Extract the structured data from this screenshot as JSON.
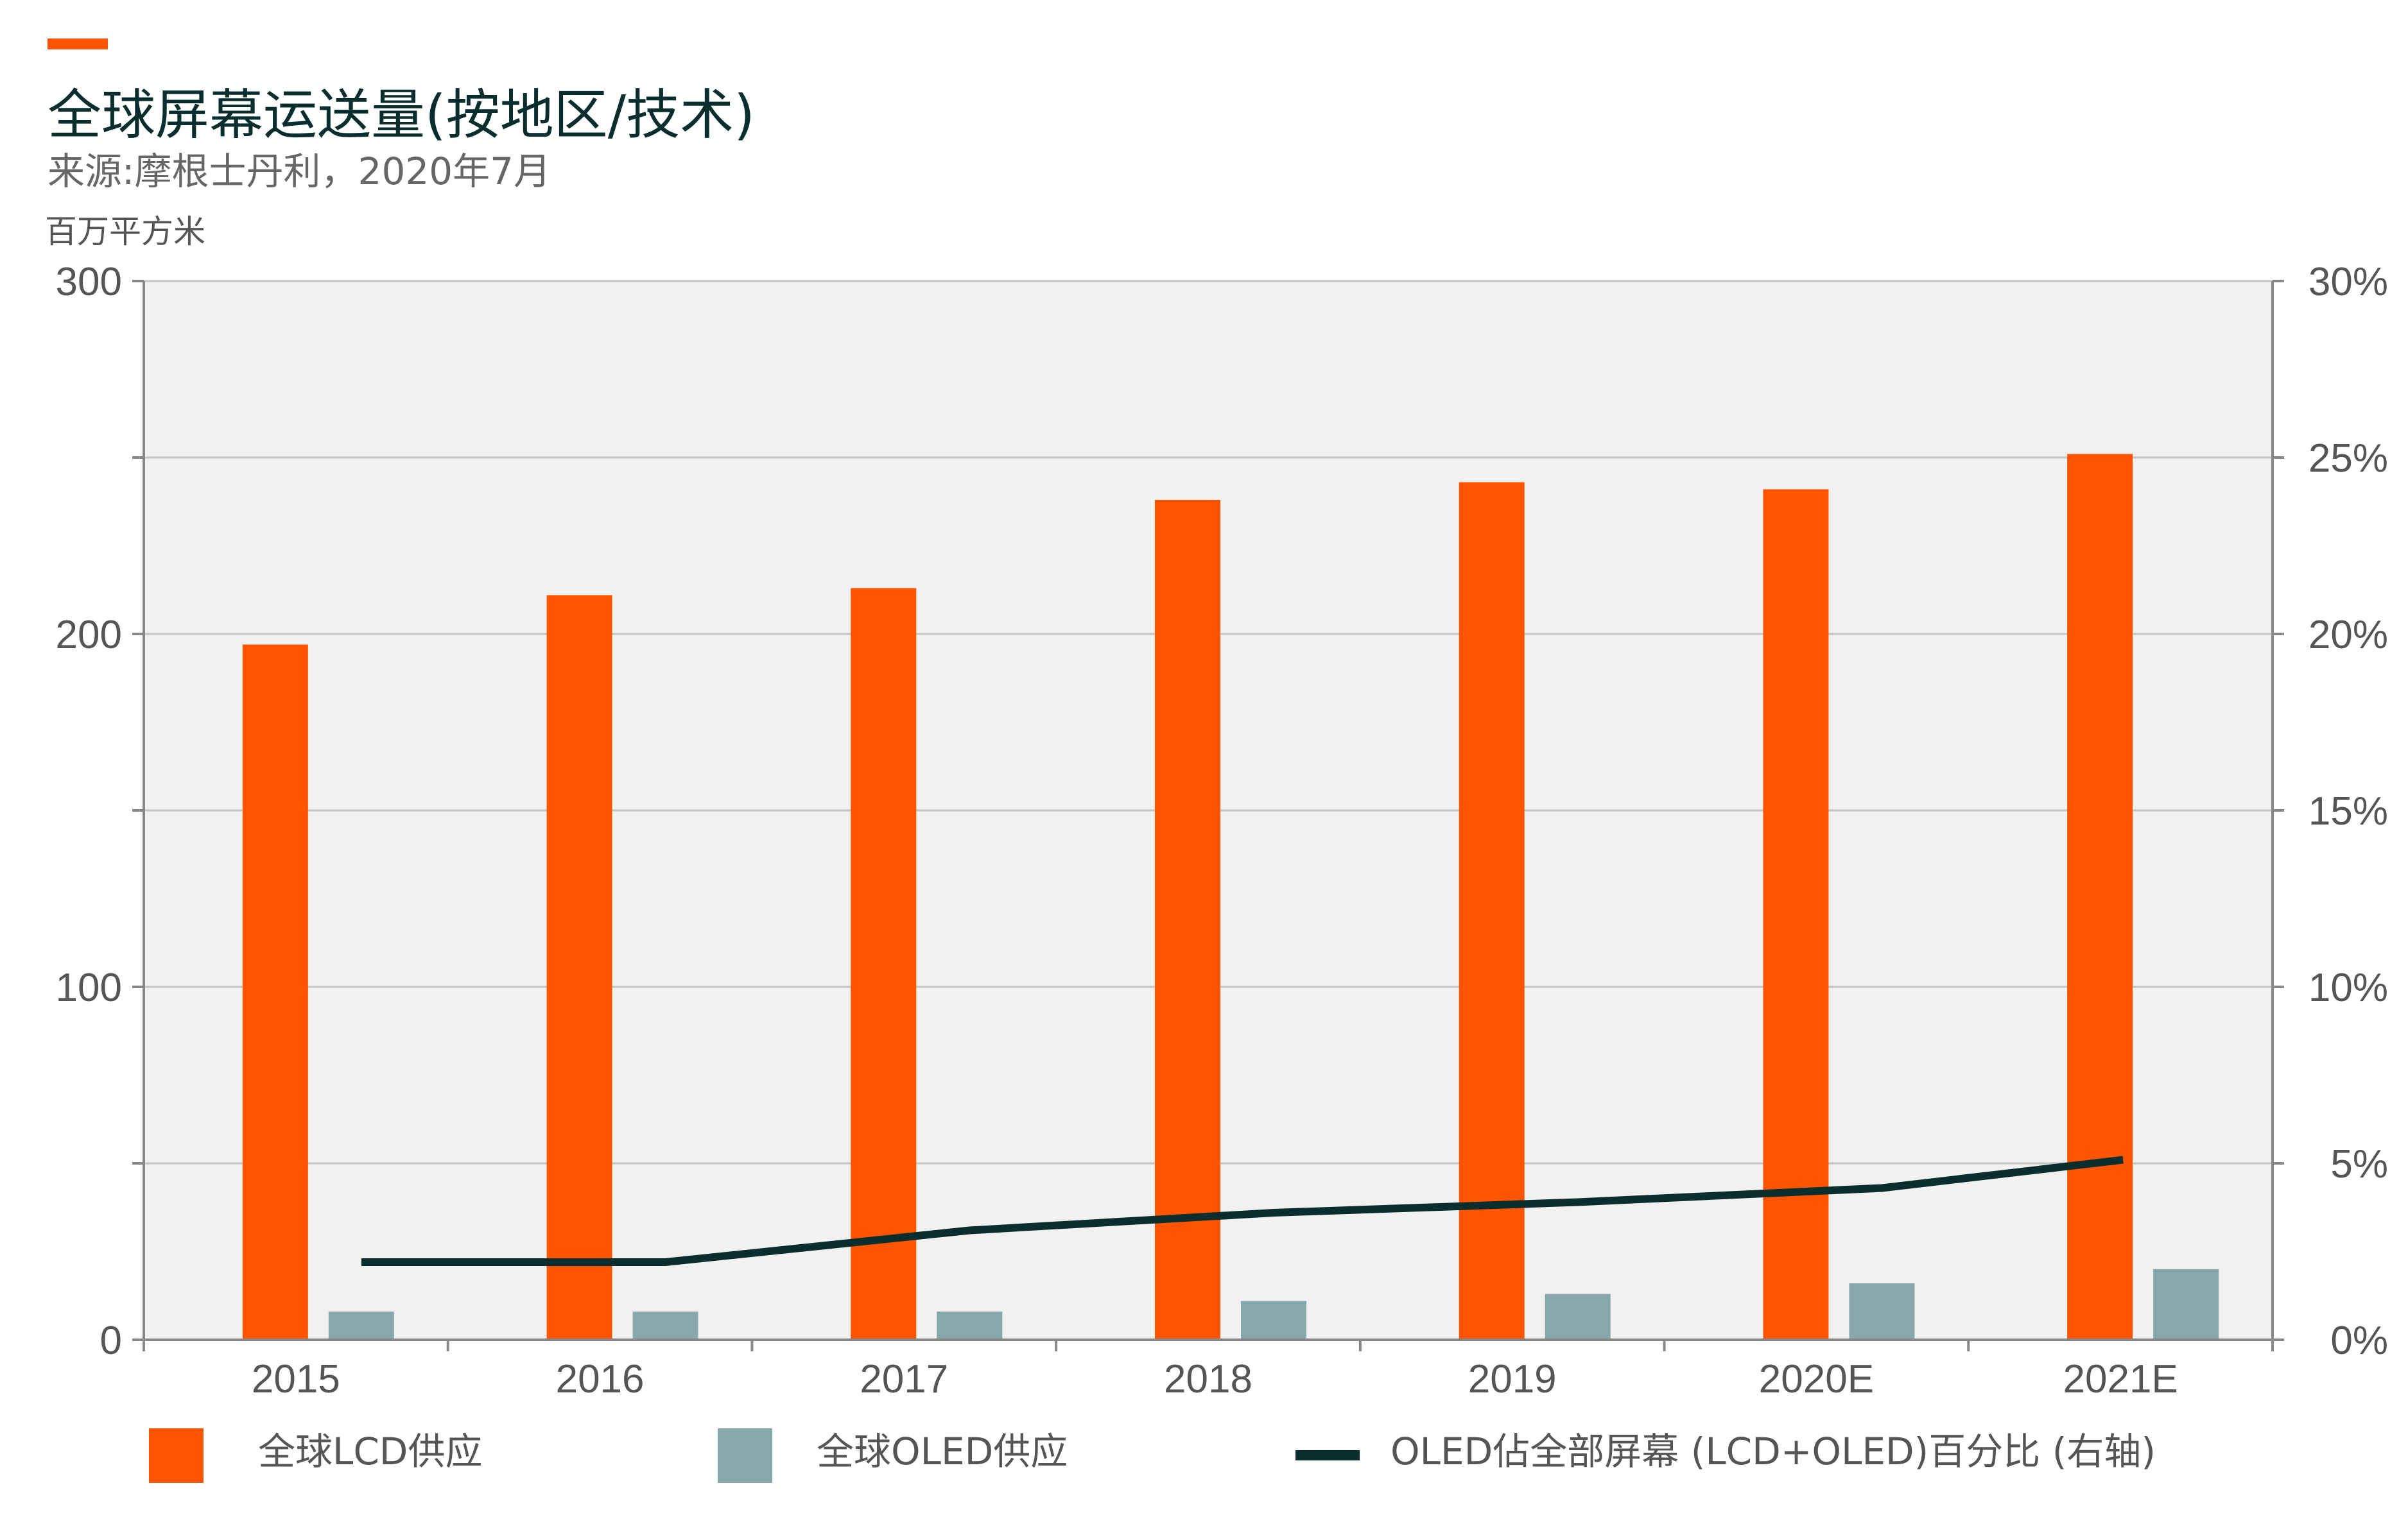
{
  "title": "全球屏幕运送量(按地区/技术)",
  "source": "来源:摩根士丹利，2020年7月",
  "colors": {
    "accent": "#ff5500",
    "lcd": "#ff5500",
    "oled": "#87a8aa",
    "share_line": "#0a2e2e",
    "plot_bg": "#f1f1f1",
    "grid": "#c4c4c4",
    "axis": "#888888"
  },
  "chart_data": {
    "type": "bar",
    "categories": [
      "2015",
      "2016",
      "2017",
      "2018",
      "2019",
      "2020E",
      "2021E"
    ],
    "series": [
      {
        "name": "全球LCD供应",
        "type": "bar",
        "axis": "left",
        "values": [
          197,
          211,
          213,
          238,
          243,
          241,
          251
        ]
      },
      {
        "name": "全球OLED供应",
        "type": "bar",
        "axis": "left",
        "values": [
          8,
          8,
          8,
          11,
          13,
          16,
          20
        ]
      },
      {
        "name": "OLED佔全部屏幕 (LCD+OLED)百分比 (右轴)",
        "type": "line",
        "axis": "right",
        "values": [
          2.2,
          2.2,
          3.1,
          3.6,
          3.9,
          4.3,
          5.1
        ]
      }
    ],
    "y_left": {
      "label": "百万平方米",
      "ylim": [
        0,
        300
      ],
      "ticks": [
        "300",
        "200",
        "100",
        "0"
      ]
    },
    "y_right": {
      "label": "",
      "ylim": [
        0,
        30
      ],
      "ticks": [
        "30%",
        "25%",
        "20%",
        "15%",
        "10%",
        "5%",
        "0%"
      ]
    },
    "grid": true,
    "legend_position": "bottom"
  }
}
